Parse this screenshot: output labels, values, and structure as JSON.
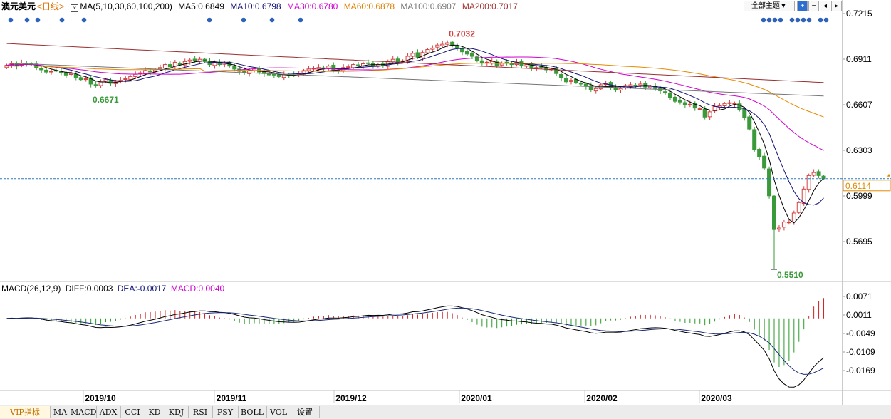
{
  "header": {
    "symbol": "澳元美元",
    "period": "<日线>",
    "ma_label": "MA(5,10,30,60,100,200)",
    "ma_values": [
      "MA5:0.6849",
      "MA10:0.6798",
      "MA30:0.6780",
      "MA60:0.6878",
      "MA100:0.6907",
      "MA200:0.7017"
    ],
    "theme_button": "全部主题▼"
  },
  "macd_header": {
    "name": "MACD(26,12,9)",
    "diff": "DIFF:0.0003",
    "dea": "DEA:-0.0017",
    "macd": "MACD:0.0040"
  },
  "colors": {
    "up": "#d44040",
    "down": "#3a9a3a",
    "ma5": "#000000",
    "ma10": "#101078",
    "ma30": "#d000d0",
    "ma60": "#e88a00",
    "ma100": "#777777",
    "ma200": "#9a3030",
    "dea": "#1a2a7a",
    "macd_pos": "#cc2222",
    "macd_neg": "#2a9a2a"
  },
  "price_axis": [
    "0.7215",
    "0.6911",
    "0.6607",
    "0.6303",
    "0.5999",
    "0.5695"
  ],
  "current_price": "0.6114",
  "macd_axis": [
    "0.0071",
    "0.0011",
    "-0.0049",
    "-0.0109",
    "-0.0169"
  ],
  "date_labels": [
    "2019/10",
    "2019/11",
    "2019/12",
    "2020/01",
    "2020/02",
    "2020/03"
  ],
  "annotations": {
    "high": "0.7032",
    "low_oct": "0.6671",
    "low_mar": "0.5510"
  },
  "tabs": [
    "VIP指标",
    "MA",
    "MACD",
    "ADX",
    "CCI",
    "KD",
    "KDJ",
    "RSI",
    "PSY",
    "BOLL",
    "VOL",
    "设置"
  ],
  "chart_data": {
    "type": "candlestick",
    "title": "澳元美元 日线",
    "ylim": [
      0.54,
      0.724
    ],
    "macd_ylim": [
      -0.021,
      0.0095
    ],
    "key_prices": {
      "high": 0.7032,
      "low": 0.551,
      "current": 0.6114
    },
    "series": [
      {
        "name": "MA5",
        "value": 0.6849
      },
      {
        "name": "MA10",
        "value": 0.6798
      },
      {
        "name": "MA30",
        "value": 0.678
      },
      {
        "name": "MA60",
        "value": 0.6878
      },
      {
        "name": "MA100",
        "value": 0.6907
      },
      {
        "name": "MA200",
        "value": 0.7017
      }
    ],
    "macd": {
      "diff": 0.0003,
      "dea": -0.0017,
      "macd": 0.004
    },
    "closes": [
      0.687,
      0.688,
      0.6865,
      0.6885,
      0.688,
      0.6875,
      0.6855,
      0.684,
      0.6825,
      0.683,
      0.6835,
      0.682,
      0.6805,
      0.6815,
      0.679,
      0.6775,
      0.678,
      0.6745,
      0.6735,
      0.676,
      0.6775,
      0.675,
      0.676,
      0.677,
      0.678,
      0.6795,
      0.681,
      0.682,
      0.6835,
      0.6825,
      0.684,
      0.6855,
      0.6875,
      0.686,
      0.689,
      0.6875,
      0.6895,
      0.6905,
      0.69,
      0.691,
      0.6895,
      0.6875,
      0.689,
      0.6875,
      0.6885,
      0.6865,
      0.6845,
      0.683,
      0.682,
      0.6835,
      0.6845,
      0.6825,
      0.6815,
      0.681,
      0.6805,
      0.6795,
      0.681,
      0.6805,
      0.6805,
      0.6815,
      0.6835,
      0.6845,
      0.685,
      0.6855,
      0.6845,
      0.6865,
      0.684,
      0.6835,
      0.6855,
      0.686,
      0.6875,
      0.6865,
      0.688,
      0.6885,
      0.6865,
      0.6875,
      0.687,
      0.6895,
      0.691,
      0.689,
      0.69,
      0.693,
      0.695,
      0.6925,
      0.6955,
      0.6975,
      0.6985,
      0.7005,
      0.701,
      0.702,
      0.7,
      0.6985,
      0.696,
      0.6945,
      0.693,
      0.69,
      0.6885,
      0.689,
      0.6895,
      0.687,
      0.6885,
      0.6885,
      0.6875,
      0.689,
      0.687,
      0.6875,
      0.685,
      0.6855,
      0.686,
      0.684,
      0.6845,
      0.6815,
      0.6785,
      0.676,
      0.677,
      0.6755,
      0.6745,
      0.673,
      0.6705,
      0.6715,
      0.674,
      0.675,
      0.6725,
      0.6705,
      0.6715,
      0.6735,
      0.674,
      0.6735,
      0.6745,
      0.6725,
      0.673,
      0.6715,
      0.67,
      0.6685,
      0.6655,
      0.663,
      0.6625,
      0.6605,
      0.661,
      0.6585,
      0.658,
      0.6525,
      0.656,
      0.6595,
      0.66,
      0.6615,
      0.662,
      0.6615,
      0.6575,
      0.652,
      0.6445,
      0.631,
      0.626,
      0.6185,
      0.6,
      0.5775,
      0.5785,
      0.5825,
      0.5825,
      0.5885,
      0.5955,
      0.6045,
      0.6135,
      0.6155,
      0.6135,
      0.6114
    ]
  }
}
